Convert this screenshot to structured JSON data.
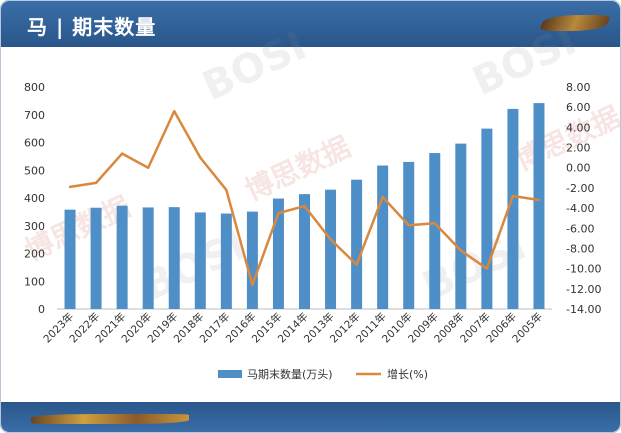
{
  "header": {
    "title": "马 | 期末数量"
  },
  "chart_data": {
    "type": "bar+line",
    "categories": [
      "2023年",
      "2022年",
      "2021年",
      "2020年",
      "2019年",
      "2018年",
      "2017年",
      "2016年",
      "2015年",
      "2014年",
      "2013年",
      "2012年",
      "2011年",
      "2010年",
      "2009年",
      "2008年",
      "2007年",
      "2006年",
      "2005年"
    ],
    "series": [
      {
        "name": "马期末数量(万头)",
        "type": "bar",
        "axis": "left",
        "color": "#4f8fc7",
        "values": [
          358,
          365,
          372,
          366,
          367,
          348,
          344,
          351,
          398,
          414,
          430,
          466,
          517,
          530,
          562,
          596,
          650,
          721,
          742
        ]
      },
      {
        "name": "增长(%)",
        "type": "line",
        "axis": "right",
        "color": "#d9883e",
        "values": [
          -1.9,
          -1.5,
          1.4,
          0.0,
          5.6,
          1.0,
          -2.2,
          -11.6,
          -4.5,
          -3.8,
          -7.1,
          -9.6,
          -2.9,
          -5.7,
          -5.5,
          -8.2,
          -10.0,
          -2.8,
          -3.2
        ]
      }
    ],
    "y_left": {
      "min": 0,
      "max": 800,
      "step": 100,
      "ticks": [
        "0",
        "100",
        "200",
        "300",
        "400",
        "500",
        "600",
        "700",
        "800"
      ]
    },
    "y_right": {
      "min": -14,
      "max": 8,
      "step": 2,
      "ticks": [
        "8.00",
        "6.00",
        "4.00",
        "2.00",
        "0.00",
        "-2.00",
        "-4.00",
        "-6.00",
        "-8.00",
        "-10.00",
        "-12.00",
        "-14.00"
      ]
    },
    "grid": false,
    "legend": "bottom"
  }
}
